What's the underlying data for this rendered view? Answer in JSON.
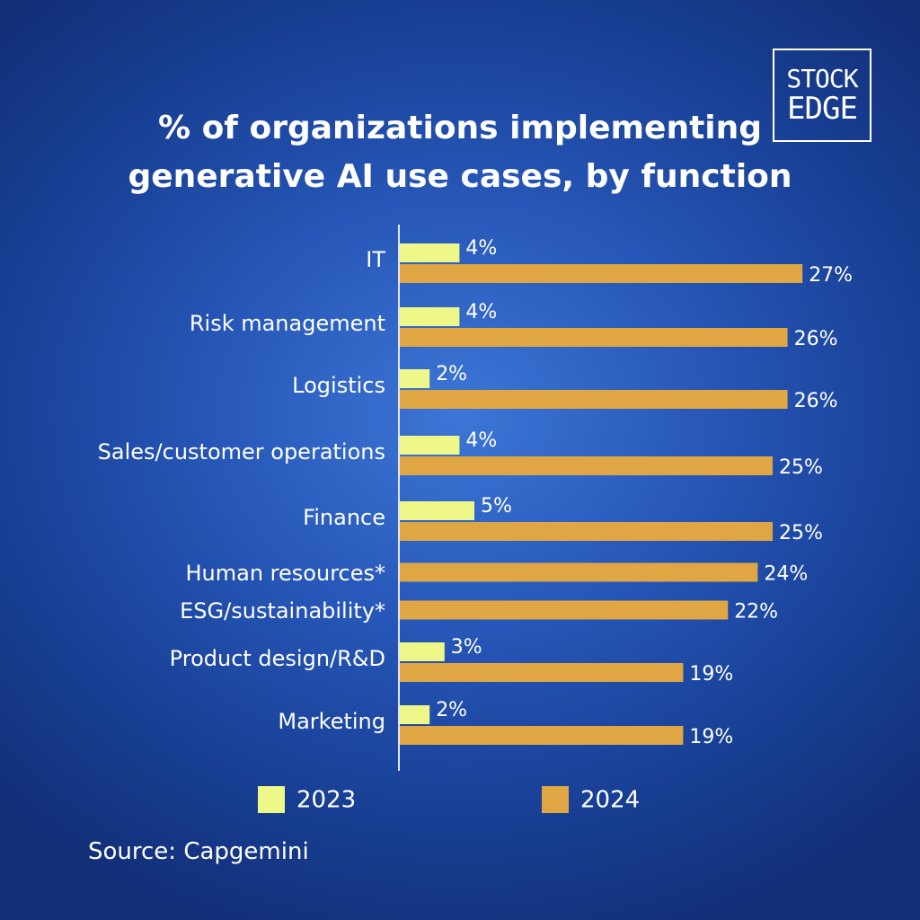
{
  "logo": {
    "line1": "STOCK",
    "line2": "EDGE"
  },
  "source": "Source: Capgemini",
  "colors": {
    "series_2023": "#eef889",
    "series_2024": "#e0a644",
    "axis": "#dfe6f5"
  },
  "chart_data": {
    "type": "bar",
    "orientation": "horizontal",
    "title": "% of organizations implementing generative AI use cases, by function",
    "categories": [
      "IT",
      "Risk management",
      "Logistics",
      "Sales/customer operations",
      "Finance",
      "Human resources*",
      "ESG/sustainability*",
      "Product design/R&D",
      "Marketing"
    ],
    "series": [
      {
        "name": "2023",
        "values": [
          4,
          4,
          2,
          4,
          5,
          null,
          null,
          3,
          2
        ],
        "labels": [
          "4%",
          "4%",
          "2%",
          "4%",
          "5%",
          null,
          null,
          "3%",
          "2%"
        ]
      },
      {
        "name": "2024",
        "values": [
          27,
          26,
          26,
          25,
          25,
          24,
          22,
          19,
          19
        ],
        "labels": [
          "27%",
          "26%",
          "26%",
          "25%",
          "25%",
          "24%",
          "22%",
          "19%",
          "19%"
        ]
      }
    ],
    "xlim": [
      0,
      30
    ],
    "grid": false,
    "legend": "bottom"
  }
}
